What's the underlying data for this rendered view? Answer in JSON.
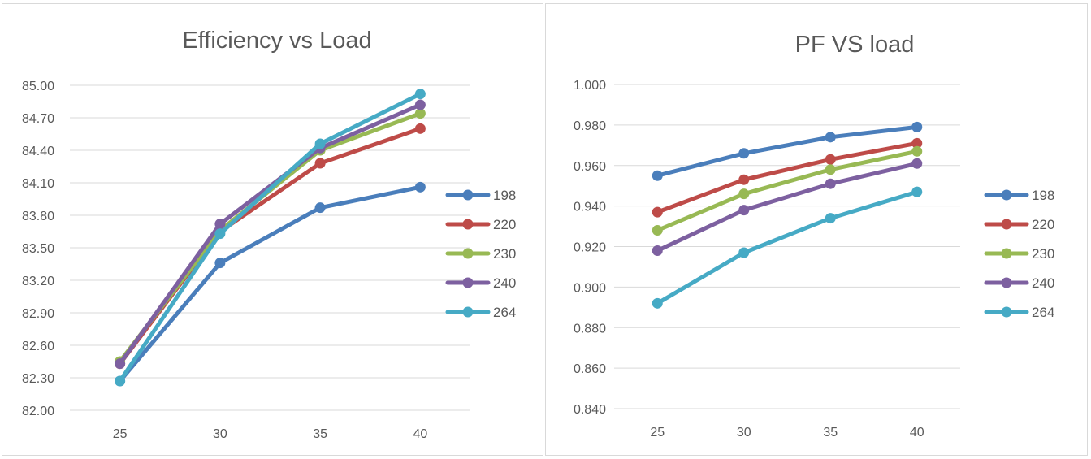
{
  "chart_data": [
    {
      "type": "line",
      "title": "Efficiency vs Load",
      "xlabel": "",
      "ylabel": "",
      "categories": [
        "25",
        "30",
        "35",
        "40"
      ],
      "ylim": [
        82.0,
        85.0
      ],
      "yticks": [
        "82.00",
        "82.30",
        "82.60",
        "82.90",
        "83.20",
        "83.50",
        "83.80",
        "84.10",
        "84.40",
        "84.70",
        "85.00"
      ],
      "grid": true,
      "legend_position": "right",
      "series": [
        {
          "name": "198",
          "color": "#4a7ebb",
          "values": [
            82.27,
            83.36,
            83.87,
            84.06
          ]
        },
        {
          "name": "220",
          "color": "#be4b48",
          "values": [
            82.43,
            83.65,
            84.28,
            84.6
          ]
        },
        {
          "name": "230",
          "color": "#98b954",
          "values": [
            82.45,
            83.66,
            84.4,
            84.74
          ]
        },
        {
          "name": "240",
          "color": "#7d60a0",
          "values": [
            82.43,
            83.72,
            84.42,
            84.82
          ]
        },
        {
          "name": "264",
          "color": "#46aac5",
          "values": [
            82.27,
            83.63,
            84.46,
            84.92
          ]
        }
      ]
    },
    {
      "type": "line",
      "title": "PF VS load",
      "xlabel": "",
      "ylabel": "",
      "categories": [
        "25",
        "30",
        "35",
        "40"
      ],
      "ylim": [
        0.84,
        1.0
      ],
      "yticks": [
        "0.840",
        "0.860",
        "0.880",
        "0.900",
        "0.920",
        "0.940",
        "0.960",
        "0.980",
        "1.000"
      ],
      "grid": true,
      "legend_position": "right",
      "series": [
        {
          "name": "198",
          "color": "#4a7ebb",
          "values": [
            0.955,
            0.966,
            0.974,
            0.979
          ]
        },
        {
          "name": "220",
          "color": "#be4b48",
          "values": [
            0.937,
            0.953,
            0.963,
            0.971
          ]
        },
        {
          "name": "230",
          "color": "#98b954",
          "values": [
            0.928,
            0.946,
            0.958,
            0.967
          ]
        },
        {
          "name": "240",
          "color": "#7d60a0",
          "values": [
            0.918,
            0.938,
            0.951,
            0.961
          ]
        },
        {
          "name": "264",
          "color": "#46aac5",
          "values": [
            0.892,
            0.917,
            0.934,
            0.947
          ]
        }
      ]
    }
  ]
}
